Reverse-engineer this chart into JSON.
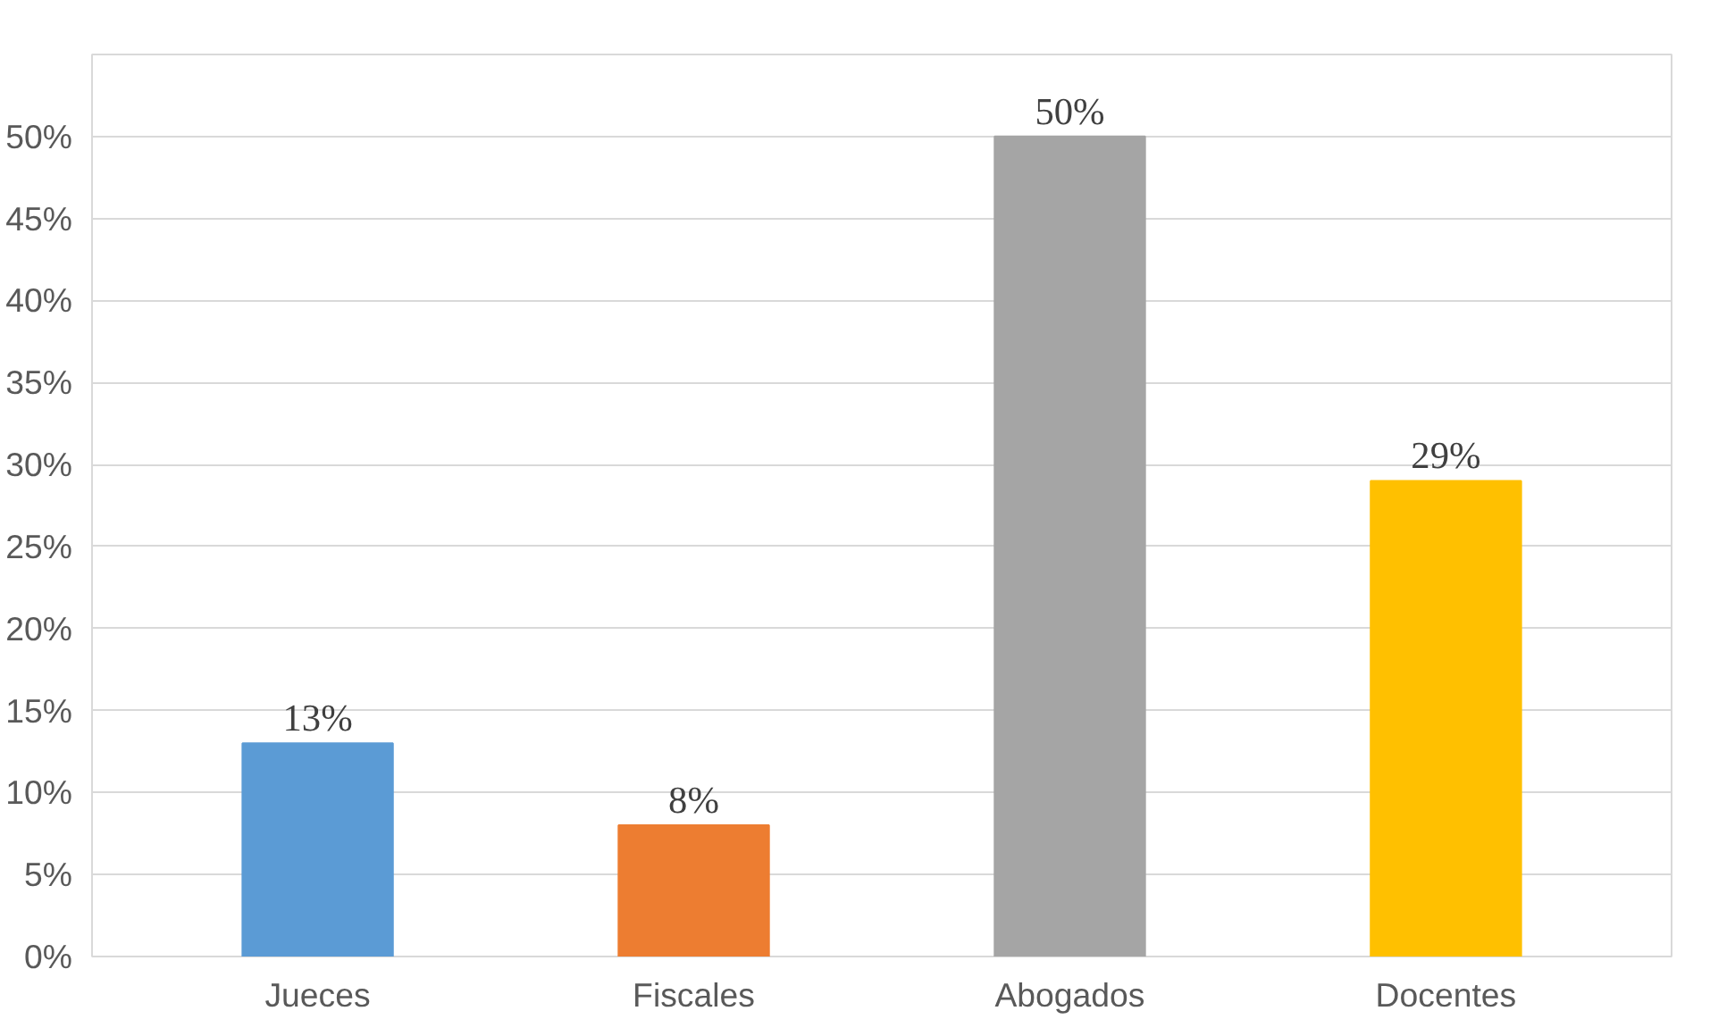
{
  "chart_data": {
    "type": "bar",
    "categories": [
      "Jueces",
      "Fiscales",
      "Abogados",
      "Docentes"
    ],
    "values": [
      13,
      8,
      50,
      29
    ],
    "colors": [
      "#5b9bd5",
      "#ed7d31",
      "#a5a5a5",
      "#ffc000"
    ],
    "value_labels": [
      "13%",
      "8%",
      "50%",
      "29%"
    ],
    "ylim": [
      0,
      55
    ],
    "yticks": [
      {
        "value": 0,
        "label": "0%"
      },
      {
        "value": 5,
        "label": "5%"
      },
      {
        "value": 10,
        "label": "10%"
      },
      {
        "value": 15,
        "label": "15%"
      },
      {
        "value": 20,
        "label": "20%"
      },
      {
        "value": 25,
        "label": "25%"
      },
      {
        "value": 30,
        "label": "30%"
      },
      {
        "value": 35,
        "label": "35%"
      },
      {
        "value": 40,
        "label": "40%"
      },
      {
        "value": 45,
        "label": "45%"
      },
      {
        "value": 50,
        "label": "50%"
      },
      {
        "value": 55,
        "label": null
      }
    ],
    "grid": "y"
  }
}
